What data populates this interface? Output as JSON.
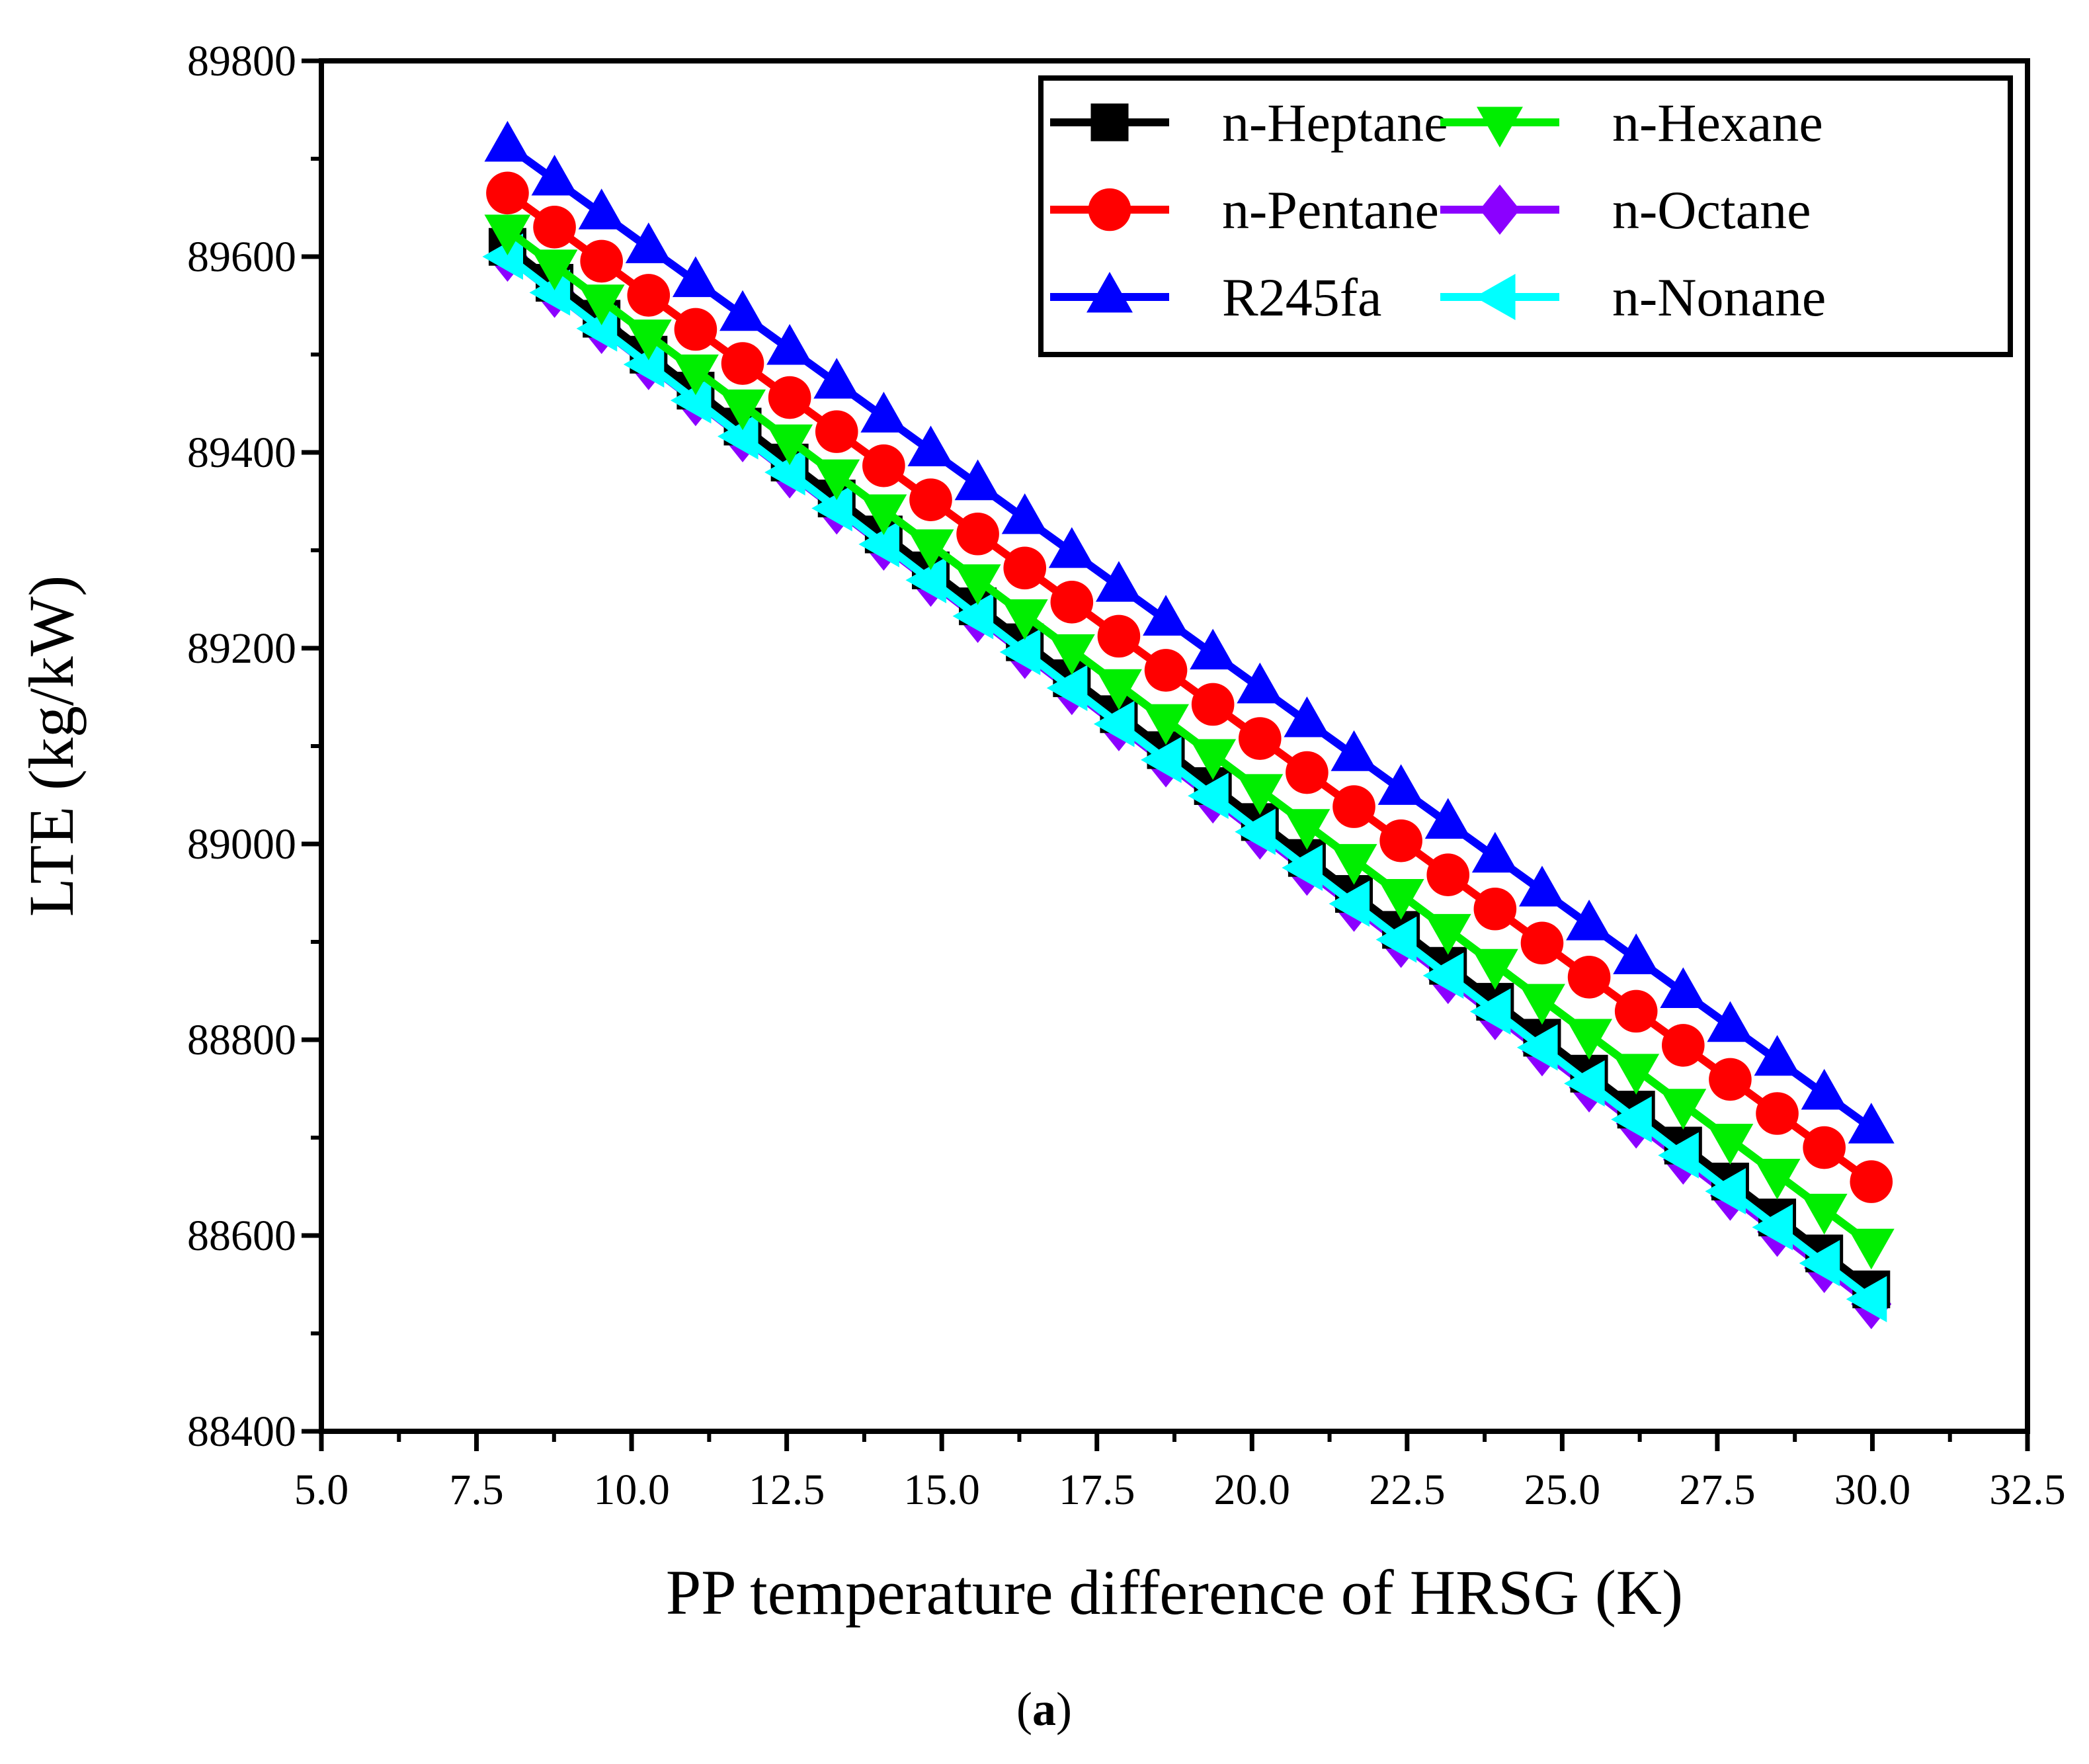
{
  "chart_data": {
    "type": "line",
    "title": "",
    "xlabel": "PP temperature difference of HRSG (K)",
    "ylabel": "LTE (kg/kW)",
    "caption_bold": "a",
    "caption_open": "(",
    "caption_close": ")",
    "xlim": [
      5.0,
      32.5
    ],
    "ylim": [
      88400,
      89800
    ],
    "xticks": [
      5.0,
      7.5,
      10.0,
      12.5,
      15.0,
      17.5,
      20.0,
      22.5,
      25.0,
      27.5,
      30.0,
      32.5
    ],
    "xtick_labels": [
      "5.0",
      "7.5",
      "10.0",
      "12.5",
      "15.0",
      "17.5",
      "20.0",
      "22.5",
      "25.0",
      "27.5",
      "30.0",
      "32.5"
    ],
    "yticks": [
      88400,
      88600,
      88800,
      89000,
      89200,
      89400,
      89600,
      89800
    ],
    "ytick_labels": [
      "88400",
      "88600",
      "88800",
      "89000",
      "89200",
      "89400",
      "89600",
      "89800"
    ],
    "grid": false,
    "legend_position": "top-right",
    "x_start": 8.0,
    "x_step": 0.758,
    "n_points": 30,
    "series": [
      {
        "name": "n-Heptane",
        "color": "#000000",
        "marker": "square",
        "y_start": 89610,
        "y_end": 88545
      },
      {
        "name": "n-Hexane",
        "color": "#00ee00",
        "marker": "triangle-down",
        "y_start": 89627,
        "y_end": 88591
      },
      {
        "name": "n-Pentane",
        "color": "#ff0000",
        "marker": "circle",
        "y_start": 89665,
        "y_end": 88655
      },
      {
        "name": "n-Octane",
        "color": "#8b00ff",
        "marker": "diamond",
        "y_start": 89600,
        "y_end": 88530
      },
      {
        "name": "R245fa",
        "color": "#0000ff",
        "marker": "triangle-up",
        "y_start": 89713,
        "y_end": 88710
      },
      {
        "name": "n-Nonane",
        "color": "#00ffff",
        "marker": "triangle-left",
        "y_start": 89600,
        "y_end": 88535
      }
    ]
  }
}
